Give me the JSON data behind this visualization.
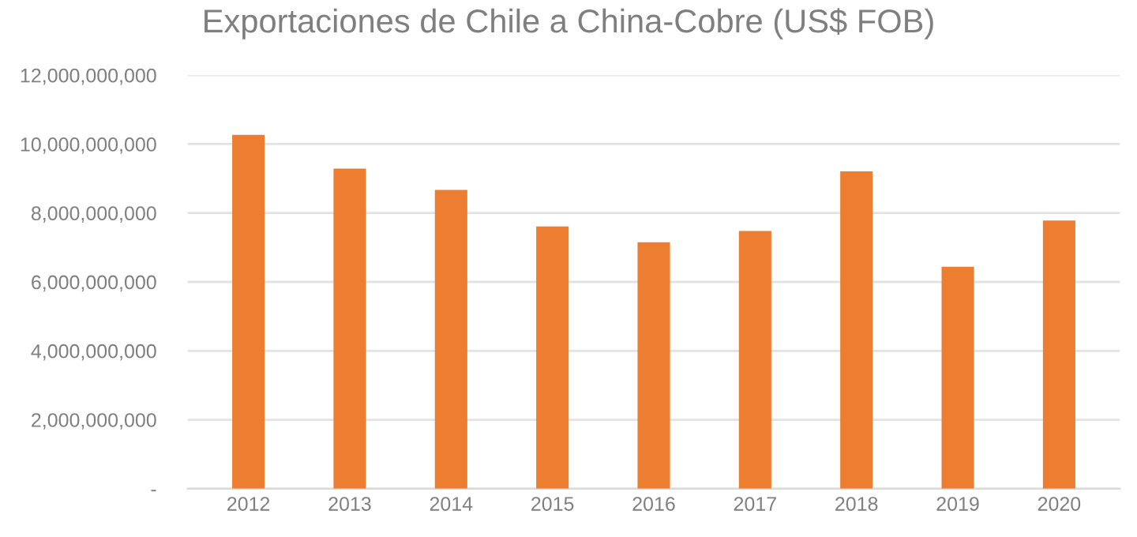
{
  "chart_data": {
    "type": "bar",
    "title": "Exportaciones de Chile a China-Cobre (US$ FOB)",
    "categories": [
      "2012",
      "2013",
      "2014",
      "2015",
      "2016",
      "2017",
      "2018",
      "2019",
      "2020"
    ],
    "values": [
      10270000000,
      9290000000,
      8670000000,
      7610000000,
      7150000000,
      7480000000,
      9210000000,
      6440000000,
      7780000000
    ],
    "color": "#ed7d31",
    "ylim": [
      0,
      12000000000
    ],
    "yticks": [
      {
        "value": 0,
        "label": "-"
      },
      {
        "value": 2000000000,
        "label": "2,000,000,000"
      },
      {
        "value": 4000000000,
        "label": "4,000,000,000"
      },
      {
        "value": 6000000000,
        "label": "6,000,000,000"
      },
      {
        "value": 8000000000,
        "label": "8,000,000,000"
      },
      {
        "value": 10000000000,
        "label": "10,000,000,000"
      },
      {
        "value": 12000000000,
        "label": "12,000,000,000"
      }
    ],
    "grid": "y"
  }
}
